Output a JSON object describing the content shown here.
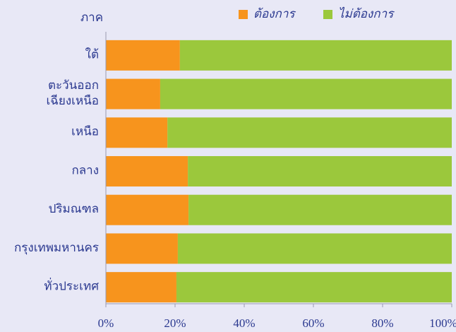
{
  "chart_data": {
    "type": "stacked_bar_horizontal",
    "y_axis_label": "ภาค",
    "categories": [
      "ใต้",
      "ตะวันออก\nเฉียงเหนือ",
      "เหนือ",
      "กลาง",
      "ปริมณฑล",
      "กรุงเทพมหานคร",
      "ทั่วประเทศ"
    ],
    "series": [
      {
        "name": "ต้องการ",
        "color": "#f7941d",
        "values": [
          21.4,
          15.7,
          17.8,
          23.7,
          23.9,
          20.8,
          20.4
        ]
      },
      {
        "name": "ไม่ต้องการ",
        "color": "#9bc83c",
        "values": [
          78.6,
          84.3,
          82.2,
          76.3,
          76.1,
          79.2,
          79.6
        ]
      }
    ],
    "xlim": [
      0,
      100
    ],
    "xticks": [
      {
        "value": 0,
        "label": "0%"
      },
      {
        "value": 20,
        "label": "20%"
      },
      {
        "value": 40,
        "label": "40%"
      },
      {
        "value": 60,
        "label": "60%"
      },
      {
        "value": 80,
        "label": "80%"
      },
      {
        "value": 100,
        "label": "100%"
      }
    ],
    "legend": "top"
  }
}
